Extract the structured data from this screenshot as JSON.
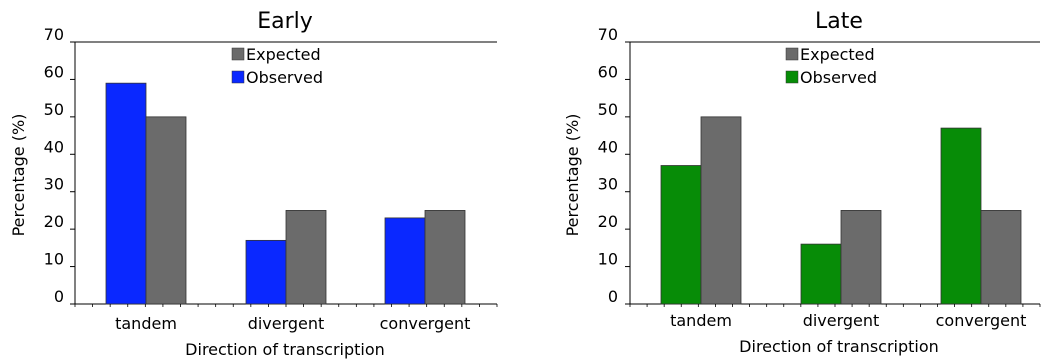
{
  "chart_data": [
    {
      "type": "bar",
      "title": "Early",
      "xlabel": "Direction of transcription",
      "ylabel": "Percentage (%)",
      "categories": [
        "tandem",
        "divergent",
        "convergent"
      ],
      "ylim": [
        0,
        70
      ],
      "yticks": [
        "0",
        "10",
        "20",
        "30",
        "40",
        "50",
        "60",
        "70"
      ],
      "grid": false,
      "legend": "top-center",
      "series": [
        {
          "name": "Observed",
          "values": [
            59,
            17,
            23
          ],
          "color": "#0a28ff"
        },
        {
          "name": "Expected",
          "values": [
            50,
            25,
            25
          ],
          "color": "#6b6b6b"
        }
      ],
      "legend_order": [
        "Expected",
        "Observed"
      ]
    },
    {
      "type": "bar",
      "title": "Late",
      "xlabel": "Direction of transcription",
      "ylabel": "Percentage (%)",
      "categories": [
        "tandem",
        "divergent",
        "convergent"
      ],
      "ylim": [
        0,
        70
      ],
      "yticks": [
        "0",
        "10",
        "20",
        "30",
        "40",
        "50",
        "60",
        "70"
      ],
      "grid": false,
      "legend": "top-center",
      "series": [
        {
          "name": "Observed",
          "values": [
            37,
            16,
            47
          ],
          "color": "#078c07"
        },
        {
          "name": "Expected",
          "values": [
            50,
            25,
            25
          ],
          "color": "#6b6b6b"
        }
      ],
      "legend_order": [
        "Expected",
        "Observed"
      ]
    }
  ]
}
